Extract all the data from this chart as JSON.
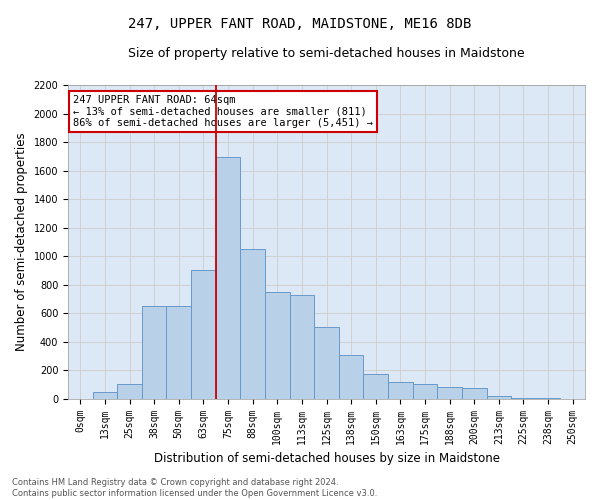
{
  "title": "247, UPPER FANT ROAD, MAIDSTONE, ME16 8DB",
  "subtitle": "Size of property relative to semi-detached houses in Maidstone",
  "xlabel": "Distribution of semi-detached houses by size in Maidstone",
  "ylabel": "Number of semi-detached properties",
  "footer_line1": "Contains HM Land Registry data © Crown copyright and database right 2024.",
  "footer_line2": "Contains public sector information licensed under the Open Government Licence v3.0.",
  "annotation_line1": "247 UPPER FANT ROAD: 64sqm",
  "annotation_line2": "← 13% of semi-detached houses are smaller (811)",
  "annotation_line3": "86% of semi-detached houses are larger (5,451) →",
  "bar_categories": [
    "0sqm",
    "13sqm",
    "25sqm",
    "38sqm",
    "50sqm",
    "63sqm",
    "75sqm",
    "88sqm",
    "100sqm",
    "113sqm",
    "125sqm",
    "138sqm",
    "150sqm",
    "163sqm",
    "175sqm",
    "188sqm",
    "200sqm",
    "213sqm",
    "225sqm",
    "238sqm",
    "250sqm"
  ],
  "bar_values": [
    0,
    50,
    100,
    650,
    650,
    900,
    1700,
    1050,
    750,
    730,
    500,
    310,
    175,
    120,
    105,
    80,
    75,
    20,
    5,
    5,
    0
  ],
  "bar_color": "#b8d0e8",
  "bar_edge_color": "#6699cc",
  "vline_color": "#cc0000",
  "vline_position": 6.0,
  "ylim": [
    0,
    2200
  ],
  "yticks": [
    0,
    200,
    400,
    600,
    800,
    1000,
    1200,
    1400,
    1600,
    1800,
    2000,
    2200
  ],
  "grid_color": "#cccccc",
  "bg_color": "#dce8f5",
  "annotation_box_color": "#cc0000",
  "title_fontsize": 10,
  "subtitle_fontsize": 9,
  "axis_label_fontsize": 8.5,
  "tick_fontsize": 7,
  "annotation_fontsize": 7.5,
  "footer_fontsize": 6
}
